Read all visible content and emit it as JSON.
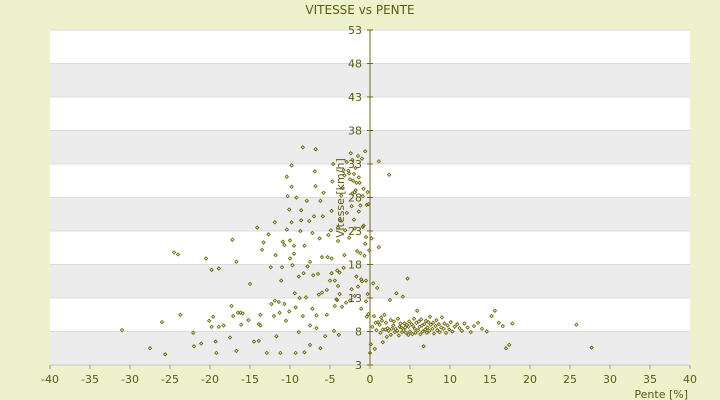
{
  "chart_data": {
    "type": "scatter",
    "title": "VITESSE vs PENTE",
    "xlabel": "Pente [%]",
    "ylabel": "Vitesse [km/h]",
    "xlim": [
      -40,
      40
    ],
    "ylim": [
      3,
      53
    ],
    "x_ticks": [
      "-40",
      "-35",
      "-30",
      "-25",
      "-20",
      "-15",
      "-10",
      "-5",
      "0",
      "5",
      "10",
      "15",
      "20",
      "25",
      "30",
      "35",
      "40"
    ],
    "y_ticks": [
      "3",
      "8",
      "13",
      "18",
      "23",
      "28",
      "33",
      "38",
      "43",
      "48",
      "53"
    ],
    "grid": true,
    "legend": "none",
    "colors": {
      "page_background": "#eef2cc",
      "plot_band_light": "#ffffff",
      "plot_band_dark": "#ececec",
      "marker": "#6b6b10",
      "text": "#5a5a14",
      "axis": "#6b6b10"
    },
    "points": [
      [
        -31.0,
        8.2
      ],
      [
        -27.5,
        5.5
      ],
      [
        -26.0,
        9.4
      ],
      [
        -25.6,
        4.6
      ],
      [
        -24.5,
        19.8
      ],
      [
        -24.0,
        19.5
      ],
      [
        -23.7,
        10.5
      ],
      [
        -22.1,
        7.8
      ],
      [
        -22.0,
        5.8
      ],
      [
        -21.1,
        6.2
      ],
      [
        -20.5,
        18.9
      ],
      [
        -20.1,
        9.6
      ],
      [
        -19.8,
        17.2
      ],
      [
        -19.8,
        8.7
      ],
      [
        -19.6,
        10.2
      ],
      [
        -19.3,
        6.5
      ],
      [
        -19.2,
        4.8
      ],
      [
        -18.9,
        17.4
      ],
      [
        -18.9,
        8.7
      ],
      [
        -18.3,
        8.9
      ],
      [
        -17.5,
        7.1
      ],
      [
        -17.3,
        11.8
      ],
      [
        -17.1,
        10.3
      ],
      [
        -17.2,
        21.7
      ],
      [
        -16.7,
        18.4
      ],
      [
        -16.7,
        5.1
      ],
      [
        -16.5,
        10.8
      ],
      [
        -16.2,
        10.8
      ],
      [
        -16.1,
        9.0
      ],
      [
        -15.9,
        10.7
      ],
      [
        -15.2,
        9.7
      ],
      [
        -15.0,
        15.1
      ],
      [
        -14.5,
        6.5
      ],
      [
        -14.1,
        23.5
      ],
      [
        -13.9,
        6.6
      ],
      [
        -13.9,
        9.1
      ],
      [
        -13.7,
        8.9
      ],
      [
        -13.7,
        10.5
      ],
      [
        -13.5,
        20.2
      ],
      [
        -13.3,
        21.3
      ],
      [
        -12.9,
        4.8
      ],
      [
        -12.7,
        22.5
      ],
      [
        -12.4,
        17.6
      ],
      [
        -12.3,
        12.1
      ],
      [
        -12.0,
        10.3
      ],
      [
        -11.9,
        24.3
      ],
      [
        -11.9,
        12.6
      ],
      [
        -11.7,
        7.3
      ],
      [
        -11.8,
        19.4
      ],
      [
        -11.4,
        12.4
      ],
      [
        -11.3,
        10.8
      ],
      [
        -11.2,
        4.8
      ],
      [
        -11.1,
        15.6
      ],
      [
        -11.0,
        17.6
      ],
      [
        -10.9,
        21.4
      ],
      [
        -10.7,
        12.1
      ],
      [
        -10.7,
        20.9
      ],
      [
        -10.5,
        9.6
      ],
      [
        -10.4,
        23.2
      ],
      [
        -10.3,
        28.2
      ],
      [
        -10.4,
        31.1
      ],
      [
        -10.1,
        11.0
      ],
      [
        -10.0,
        18.9
      ],
      [
        -10.0,
        21.6
      ],
      [
        -10.1,
        26.2
      ],
      [
        -9.7,
        17.9
      ],
      [
        -9.8,
        29.6
      ],
      [
        -9.8,
        32.8
      ],
      [
        -9.8,
        24.3
      ],
      [
        -9.5,
        19.6
      ],
      [
        -9.5,
        20.8
      ],
      [
        -9.4,
        13.7
      ],
      [
        -9.3,
        4.8
      ],
      [
        -9.3,
        11.6
      ],
      [
        -9.2,
        28.0
      ],
      [
        -8.9,
        16.2
      ],
      [
        -8.9,
        7.9
      ],
      [
        -8.8,
        13.0
      ],
      [
        -8.7,
        23.0
      ],
      [
        -8.6,
        24.6
      ],
      [
        -8.6,
        26.1
      ],
      [
        -8.4,
        35.5
      ],
      [
        -8.4,
        10.3
      ],
      [
        -8.3,
        16.7
      ],
      [
        -8.2,
        20.8
      ],
      [
        -8.2,
        4.9
      ],
      [
        -8.0,
        13.1
      ],
      [
        -7.9,
        27.5
      ],
      [
        -7.8,
        17.7
      ],
      [
        -7.6,
        24.5
      ],
      [
        -7.5,
        6.0
      ],
      [
        -7.5,
        8.9
      ],
      [
        -7.5,
        18.4
      ],
      [
        -7.2,
        22.7
      ],
      [
        -7.2,
        11.4
      ],
      [
        -7.1,
        16.4
      ],
      [
        -7.0,
        25.2
      ],
      [
        -6.9,
        31.9
      ],
      [
        -6.8,
        35.2
      ],
      [
        -6.8,
        29.7
      ],
      [
        -6.7,
        10.4
      ],
      [
        -6.7,
        8.5
      ],
      [
        -6.5,
        16.6
      ],
      [
        -6.4,
        13.5
      ],
      [
        -6.3,
        21.9
      ],
      [
        -6.2,
        5.5
      ],
      [
        -6.2,
        27.5
      ],
      [
        -6.0,
        13.8
      ],
      [
        -6.0,
        19.1
      ],
      [
        -5.8,
        28.7
      ],
      [
        -5.9,
        25.2
      ],
      [
        -5.6,
        7.3
      ],
      [
        -5.4,
        14.2
      ],
      [
        -5.4,
        10.5
      ],
      [
        -5.3,
        19.1
      ],
      [
        -5.2,
        22.4
      ],
      [
        -5.0,
        15.6
      ],
      [
        -4.8,
        18.9
      ],
      [
        -4.8,
        16.7
      ],
      [
        -4.9,
        23.1
      ],
      [
        -4.8,
        26.0
      ],
      [
        -4.7,
        30.4
      ],
      [
        -4.6,
        33.0
      ],
      [
        -4.5,
        8.1
      ],
      [
        -4.4,
        15.6
      ],
      [
        -4.4,
        11.8
      ],
      [
        -4.2,
        12.8
      ],
      [
        -4.1,
        12.7
      ],
      [
        -4.1,
        17.1
      ],
      [
        -4.0,
        14.8
      ],
      [
        -4.0,
        21.5
      ],
      [
        -4.0,
        23.5
      ],
      [
        -3.9,
        7.5
      ],
      [
        -3.8,
        13.6
      ],
      [
        -3.8,
        16.8
      ],
      [
        -3.7,
        24.6
      ],
      [
        -3.6,
        28.3
      ],
      [
        -3.5,
        11.7
      ],
      [
        -3.4,
        29.4
      ],
      [
        -3.3,
        32.1
      ],
      [
        -3.3,
        17.5
      ],
      [
        -3.2,
        19.4
      ],
      [
        -3.2,
        31.3
      ],
      [
        -3.1,
        23.1
      ],
      [
        -3.0,
        12.3
      ],
      [
        -2.9,
        25.7
      ],
      [
        -2.9,
        33.3
      ],
      [
        -2.7,
        32.0
      ],
      [
        -2.6,
        22.0
      ],
      [
        -2.6,
        31.6
      ],
      [
        -2.5,
        12.6
      ],
      [
        -2.5,
        30.7
      ],
      [
        -2.4,
        34.6
      ],
      [
        -2.3,
        14.3
      ],
      [
        -2.3,
        26.7
      ],
      [
        -2.2,
        28.6
      ],
      [
        -2.2,
        33.6
      ],
      [
        -2.1,
        30.5
      ],
      [
        -2.0,
        31.5
      ],
      [
        -2.0,
        24.7
      ],
      [
        -1.9,
        13.3
      ],
      [
        -1.9,
        23.4
      ],
      [
        -1.9,
        28.8
      ],
      [
        -1.8,
        29.1
      ],
      [
        -1.8,
        32.4
      ],
      [
        -1.7,
        16.2
      ],
      [
        -1.7,
        30.2
      ],
      [
        -1.6,
        20.0
      ],
      [
        -1.5,
        14.7
      ],
      [
        -1.5,
        34.2
      ],
      [
        -1.4,
        31.0
      ],
      [
        -1.4,
        25.9
      ],
      [
        -1.3,
        30.2
      ],
      [
        -1.2,
        19.7
      ],
      [
        -1.2,
        26.8
      ],
      [
        -1.1,
        11.4
      ],
      [
        -1.1,
        15.8
      ],
      [
        -1.0,
        33.8
      ],
      [
        -1.0,
        15.5
      ],
      [
        -0.9,
        23.6
      ],
      [
        -0.9,
        28.2
      ],
      [
        -0.8,
        23.8
      ],
      [
        -0.8,
        29.3
      ],
      [
        -0.7,
        19.3
      ],
      [
        -0.6,
        21.1
      ],
      [
        -0.6,
        34.9
      ],
      [
        -0.5,
        22.1
      ],
      [
        -0.5,
        12.5
      ],
      [
        -0.5,
        15.6
      ],
      [
        -0.4,
        26.9
      ],
      [
        -0.4,
        10.2
      ],
      [
        -0.3,
        28.8
      ],
      [
        -0.3,
        13.6
      ],
      [
        -0.2,
        10.6
      ],
      [
        -0.2,
        27.0
      ],
      [
        -0.1,
        20.1
      ],
      [
        0.0,
        4.8
      ],
      [
        0.1,
        6.1
      ],
      [
        0.2,
        21.9
      ],
      [
        0.3,
        8.7
      ],
      [
        0.4,
        15.2
      ],
      [
        0.5,
        10.3
      ],
      [
        0.6,
        5.4
      ],
      [
        0.7,
        9.3
      ],
      [
        0.8,
        8.2
      ],
      [
        0.9,
        14.5
      ],
      [
        1.0,
        9.4
      ],
      [
        1.1,
        20.6
      ],
      [
        1.1,
        33.4
      ],
      [
        1.2,
        9.0
      ],
      [
        1.3,
        7.8
      ],
      [
        1.4,
        10.1
      ],
      [
        1.5,
        9.6
      ],
      [
        1.6,
        8.3
      ],
      [
        1.6,
        6.4
      ],
      [
        1.8,
        10.5
      ],
      [
        1.9,
        8.3
      ],
      [
        2.0,
        9.3
      ],
      [
        2.1,
        7.2
      ],
      [
        2.2,
        8.5
      ],
      [
        2.3,
        8.1
      ],
      [
        2.4,
        31.4
      ],
      [
        2.5,
        12.7
      ],
      [
        2.6,
        9.7
      ],
      [
        2.6,
        7.5
      ],
      [
        2.7,
        8.4
      ],
      [
        2.9,
        8.9
      ],
      [
        3.0,
        9.5
      ],
      [
        3.1,
        7.9
      ],
      [
        3.2,
        8.4
      ],
      [
        3.3,
        13.7
      ],
      [
        3.4,
        8.1
      ],
      [
        3.5,
        9.9
      ],
      [
        3.6,
        7.4
      ],
      [
        3.7,
        8.7
      ],
      [
        3.8,
        9.2
      ],
      [
        3.9,
        8.6
      ],
      [
        4.0,
        7.9
      ],
      [
        4.1,
        13.2
      ],
      [
        4.2,
        8.2
      ],
      [
        4.3,
        9.2
      ],
      [
        4.4,
        8.6
      ],
      [
        4.5,
        7.8
      ],
      [
        4.6,
        9.0
      ],
      [
        4.7,
        15.9
      ],
      [
        4.8,
        8.7
      ],
      [
        4.8,
        7.5
      ],
      [
        4.9,
        9.5
      ],
      [
        5.0,
        8.0
      ],
      [
        5.2,
        9.1
      ],
      [
        5.3,
        7.6
      ],
      [
        5.4,
        8.8
      ],
      [
        5.5,
        9.9
      ],
      [
        5.6,
        8.4
      ],
      [
        5.7,
        7.8
      ],
      [
        5.8,
        9.3
      ],
      [
        5.9,
        11.1
      ],
      [
        6.0,
        8.2
      ],
      [
        6.1,
        9.5
      ],
      [
        6.2,
        8.7
      ],
      [
        6.3,
        7.6
      ],
      [
        6.4,
        9.8
      ],
      [
        6.5,
        8.9
      ],
      [
        6.6,
        8.0
      ],
      [
        6.7,
        5.8
      ],
      [
        6.8,
        9.1
      ],
      [
        6.9,
        8.3
      ],
      [
        7.0,
        9.6
      ],
      [
        7.1,
        7.8
      ],
      [
        7.2,
        8.6
      ],
      [
        7.3,
        9.4
      ],
      [
        7.4,
        8.1
      ],
      [
        7.5,
        10.2
      ],
      [
        7.6,
        9.0
      ],
      [
        7.8,
        8.4
      ],
      [
        7.9,
        9.3
      ],
      [
        8.0,
        7.7
      ],
      [
        8.2,
        8.8
      ],
      [
        8.3,
        9.7
      ],
      [
        8.4,
        8.2
      ],
      [
        8.6,
        9.1
      ],
      [
        8.7,
        7.9
      ],
      [
        8.9,
        8.6
      ],
      [
        9.0,
        10.1
      ],
      [
        9.2,
        8.4
      ],
      [
        9.3,
        9.2
      ],
      [
        9.5,
        7.8
      ],
      [
        9.7,
        8.9
      ],
      [
        9.9,
        8.3
      ],
      [
        10.1,
        9.4
      ],
      [
        10.3,
        8.0
      ],
      [
        10.6,
        8.7
      ],
      [
        10.9,
        9.1
      ],
      [
        11.2,
        8.5
      ],
      [
        11.5,
        8.1
      ],
      [
        11.8,
        9.2
      ],
      [
        12.2,
        8.6
      ],
      [
        12.6,
        7.9
      ],
      [
        13.0,
        8.8
      ],
      [
        13.5,
        9.3
      ],
      [
        14.0,
        8.4
      ],
      [
        14.6,
        8.0
      ],
      [
        15.2,
        10.3
      ],
      [
        15.6,
        11.1
      ],
      [
        16.1,
        9.3
      ],
      [
        16.6,
        8.8
      ],
      [
        17.0,
        5.5
      ],
      [
        17.4,
        6.0
      ],
      [
        17.8,
        9.2
      ],
      [
        25.8,
        9.0
      ],
      [
        27.7,
        5.6
      ]
    ]
  }
}
